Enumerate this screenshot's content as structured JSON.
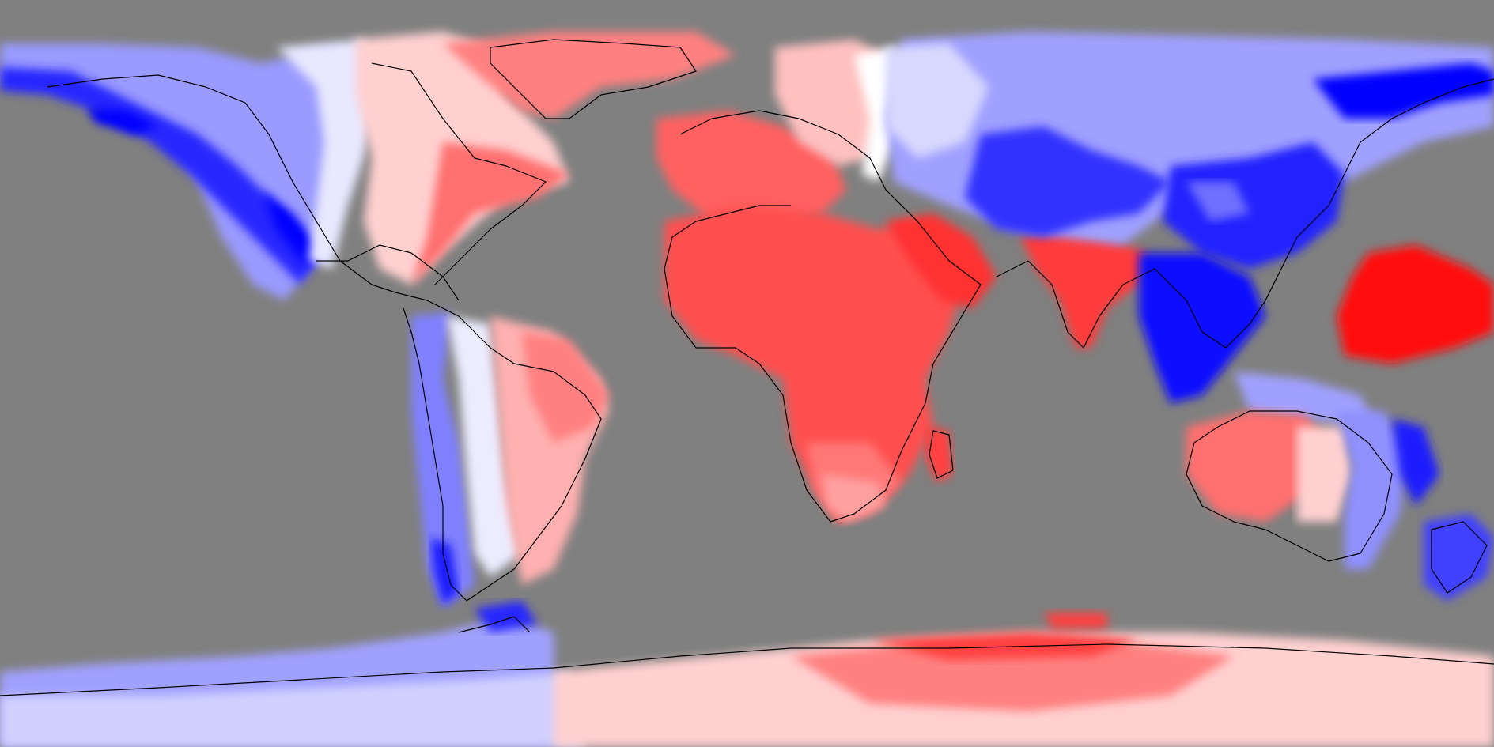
{
  "map": {
    "projection": "equirectangular",
    "legend": "none",
    "title": "",
    "colors": {
      "ocean_masked": "#808080",
      "strong_positive": "#ff0000",
      "positive": "#ff5050",
      "weak_positive": "#ffb4b4",
      "neutral": "#ffffff",
      "weak_negative": "#b4b4ff",
      "negative": "#5050ff",
      "strong_negative": "#0000ff",
      "coastline": "#000000"
    },
    "regions": [
      {
        "name": "north-america-west",
        "sign": "negative"
      },
      {
        "name": "north-america-east",
        "sign": "positive"
      },
      {
        "name": "greenland",
        "sign": "positive"
      },
      {
        "name": "south-america-west",
        "sign": "negative"
      },
      {
        "name": "south-america-east",
        "sign": "positive"
      },
      {
        "name": "europe-west",
        "sign": "positive"
      },
      {
        "name": "africa",
        "sign": "positive"
      },
      {
        "name": "arabia",
        "sign": "positive"
      },
      {
        "name": "india",
        "sign": "positive"
      },
      {
        "name": "russia-central-asia",
        "sign": "negative"
      },
      {
        "name": "east-asia",
        "sign": "negative"
      },
      {
        "name": "southeast-asia",
        "sign": "negative"
      },
      {
        "name": "australia-west",
        "sign": "positive"
      },
      {
        "name": "australia-east",
        "sign": "negative"
      },
      {
        "name": "new-zealand",
        "sign": "negative"
      },
      {
        "name": "west-pacific-patch",
        "sign": "positive"
      },
      {
        "name": "antarctica-west",
        "sign": "negative"
      },
      {
        "name": "antarctica-east",
        "sign": "positive"
      }
    ]
  }
}
